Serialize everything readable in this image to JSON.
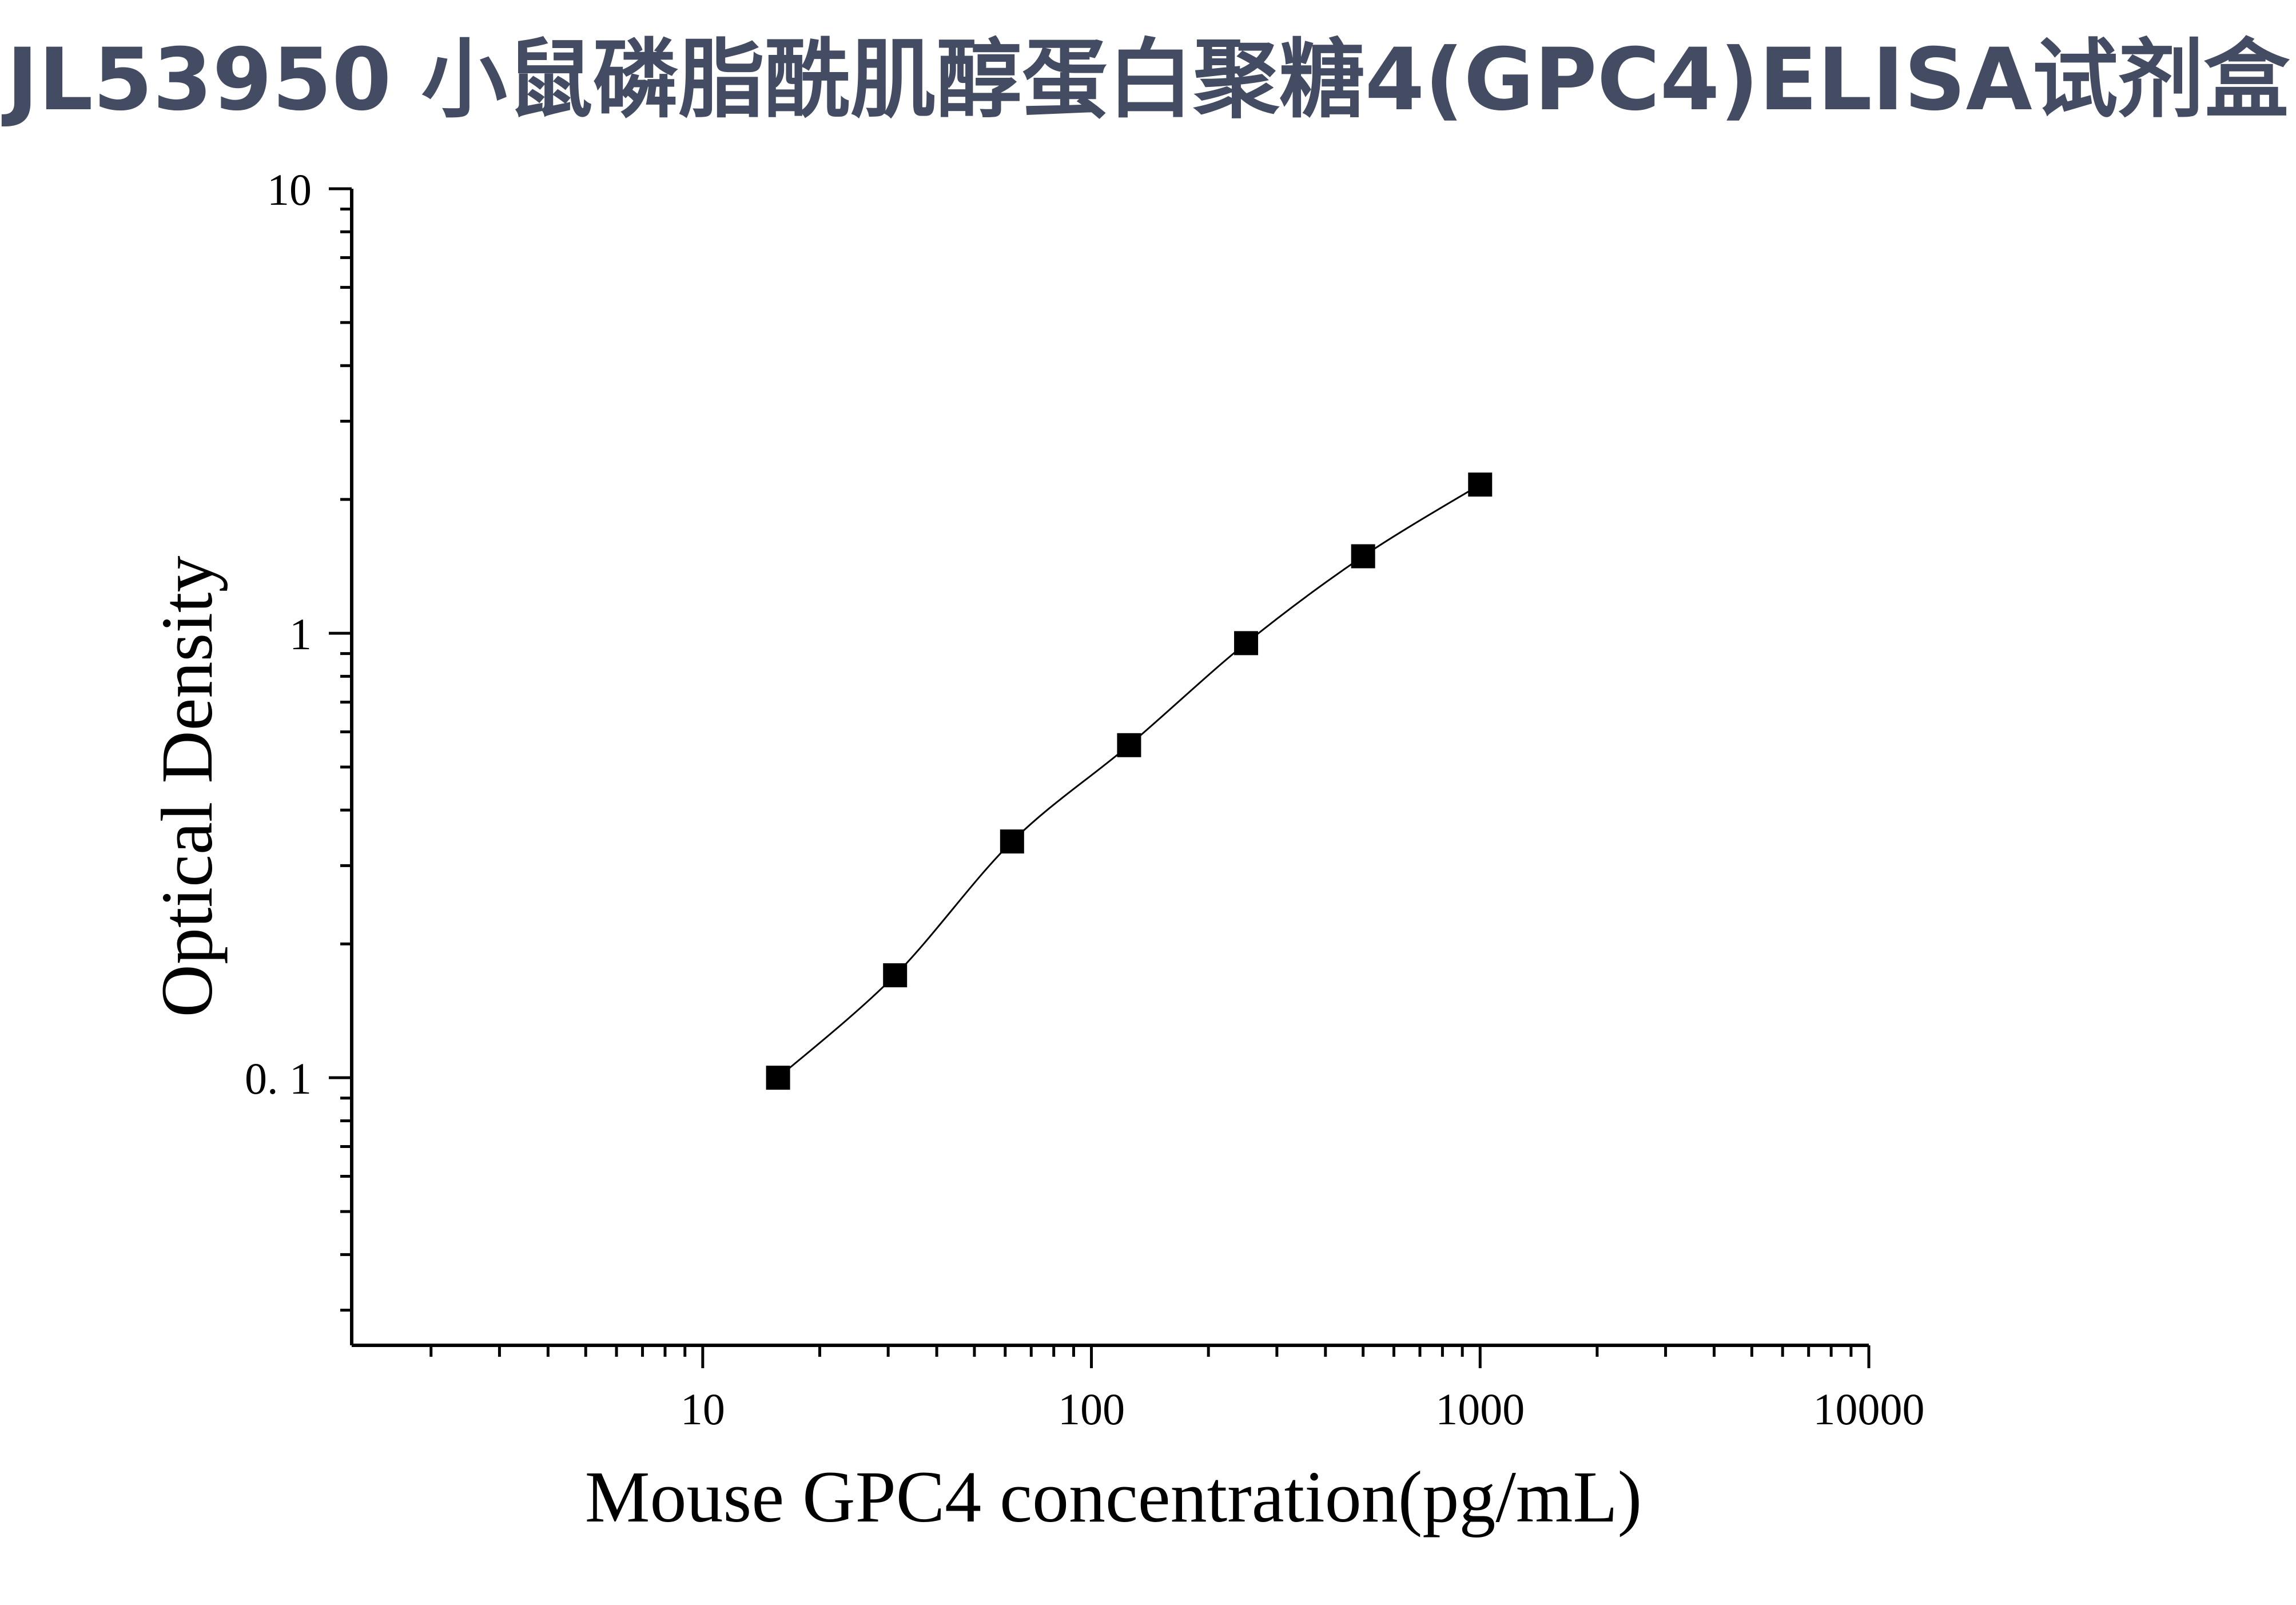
{
  "title": "JL53950 小鼠磷脂酰肌醇蛋白聚糖4(GPC4)ELISA试剂盒",
  "colors": {
    "title": "#434c62",
    "axis": "#000000",
    "marker": "#000000"
  },
  "chart_data": {
    "type": "scatter",
    "title": "JL53950 小鼠磷脂酰肌醇蛋白聚糖4(GPC4)ELISA试剂盒",
    "xlabel": "Mouse GPC4 concentration(pg/mL)",
    "ylabel": "Optical Density",
    "x_scale": "log",
    "y_scale": "log",
    "xlim": [
      1.25,
      10000
    ],
    "ylim": [
      0.025,
      10
    ],
    "x_ticks": [
      {
        "value": 10,
        "label": "10"
      },
      {
        "value": 100,
        "label": "100"
      },
      {
        "value": 1000,
        "label": "1000"
      },
      {
        "value": 10000,
        "label": "10000"
      }
    ],
    "y_ticks": [
      {
        "value": 10,
        "label": "10"
      },
      {
        "value": 1,
        "label": "1"
      },
      {
        "value": 0.1,
        "label": "0. 1"
      }
    ],
    "grid": false,
    "legend": "none",
    "marker": "square",
    "fit_line": true,
    "series": [
      {
        "x": [
          15.625,
          31.25,
          62.5,
          125,
          250,
          500,
          1000
        ],
        "y": [
          0.1,
          0.17,
          0.34,
          0.56,
          0.95,
          1.49,
          2.16
        ]
      }
    ]
  }
}
